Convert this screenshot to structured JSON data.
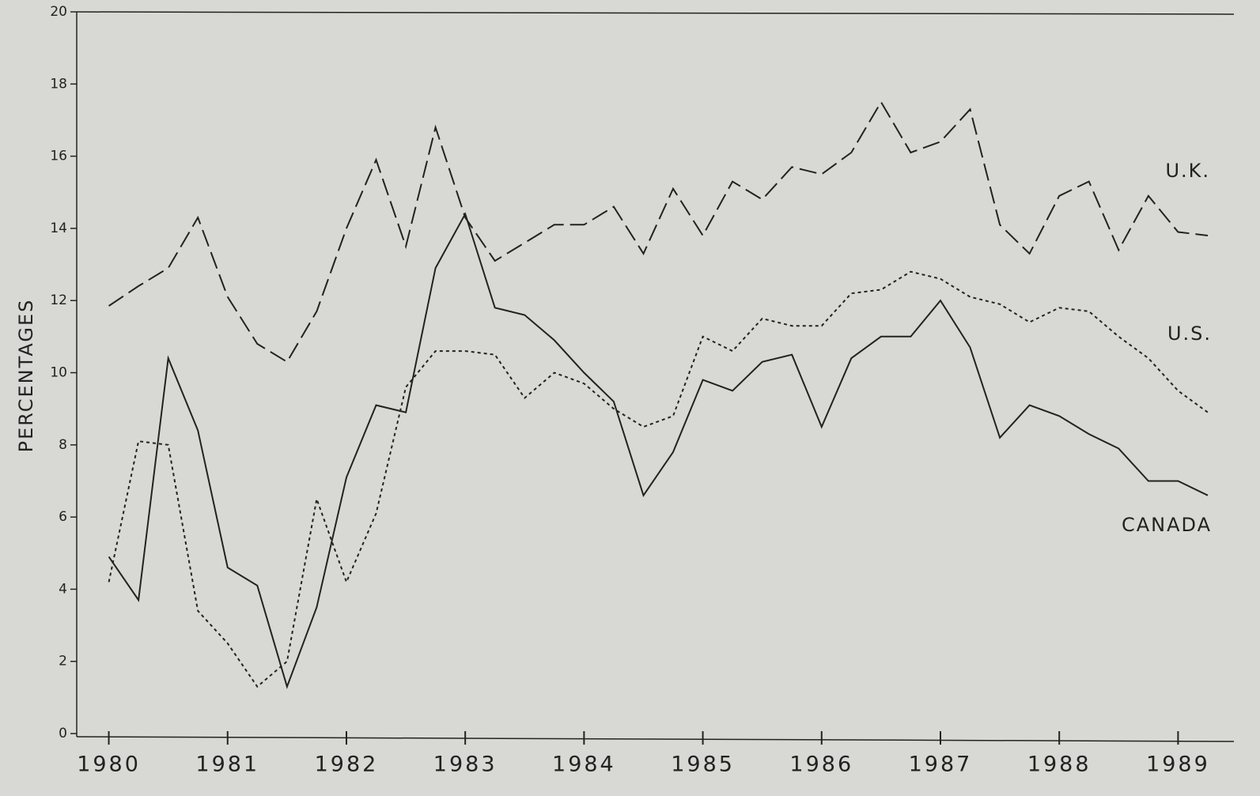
{
  "chart_data": {
    "type": "line",
    "y_label": "PERCENTAGES",
    "x": [
      1980,
      1980.25,
      1980.5,
      1980.75,
      1981,
      1981.25,
      1981.5,
      1981.75,
      1982,
      1982.25,
      1982.5,
      1982.75,
      1983,
      1983.25,
      1983.5,
      1983.75,
      1984,
      1984.25,
      1984.5,
      1984.75,
      1985,
      1985.25,
      1985.5,
      1985.75,
      1986,
      1986.25,
      1986.5,
      1986.75,
      1987,
      1987.25,
      1987.5,
      1987.75,
      1988,
      1988.25,
      1988.5,
      1988.75,
      1989,
      1989.25
    ],
    "series": [
      {
        "name": "U.K.",
        "color": "#222222",
        "line_style": "dashed",
        "values": [
          11.85,
          12.4,
          12.9,
          14.3,
          12.1,
          10.8,
          10.3,
          11.7,
          14.0,
          15.9,
          13.5,
          16.8,
          14.3,
          13.1,
          13.6,
          14.1,
          14.1,
          14.6,
          13.3,
          15.1,
          13.8,
          15.3,
          14.8,
          15.7,
          15.5,
          16.1,
          17.5,
          16.1,
          16.4,
          17.3,
          14.1,
          13.3,
          14.9,
          15.3,
          13.4,
          14.9,
          13.9,
          13.8
        ]
      },
      {
        "name": "U.S.",
        "color": "#222222",
        "line_style": "dotted",
        "values": [
          4.2,
          8.1,
          8.0,
          3.4,
          2.5,
          1.3,
          2.0,
          6.5,
          4.2,
          6.1,
          9.6,
          10.6,
          10.6,
          10.5,
          9.3,
          10.0,
          9.7,
          9.0,
          8.5,
          8.8,
          11.0,
          10.6,
          11.5,
          11.3,
          11.3,
          12.2,
          12.3,
          12.8,
          12.6,
          12.1,
          11.9,
          11.4,
          11.8,
          11.7,
          11.0,
          10.4,
          9.5,
          8.9
        ]
      },
      {
        "name": "CANADA",
        "color": "#222222",
        "line_style": "solid",
        "values": [
          4.9,
          3.7,
          10.4,
          8.4,
          4.6,
          4.1,
          1.3,
          3.5,
          7.1,
          9.1,
          8.9,
          12.9,
          14.4,
          11.8,
          11.6,
          10.9,
          10.0,
          9.2,
          6.6,
          7.8,
          9.8,
          9.5,
          10.3,
          10.5,
          8.5,
          10.4,
          11.0,
          11.0,
          12.0,
          10.7,
          8.2,
          9.1,
          8.8,
          8.3,
          7.9,
          7.0,
          7.0,
          6.6
        ]
      }
    ],
    "xlim": [
      1979.73,
      1989.47
    ],
    "xticks": [
      1980,
      1981,
      1982,
      1983,
      1984,
      1985,
      1986,
      1987,
      1988,
      1989
    ],
    "ylim": [
      0,
      20
    ],
    "yticks": [
      0,
      2,
      4,
      6,
      8,
      10,
      12,
      14,
      16,
      18,
      20
    ]
  }
}
